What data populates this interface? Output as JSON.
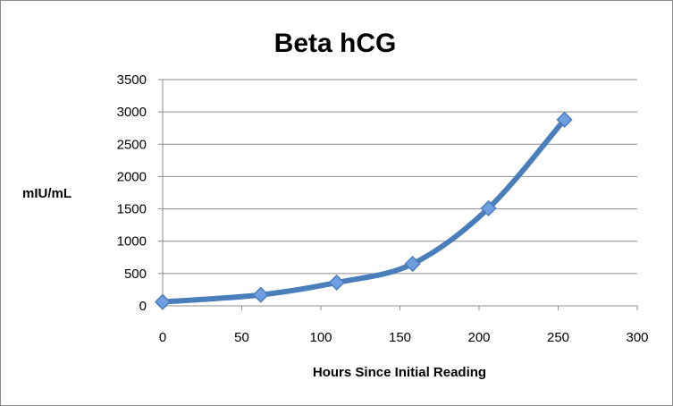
{
  "chart_data": {
    "type": "scatter",
    "title": "Beta hCG",
    "xlabel": "Hours Since Initial Reading",
    "ylabel": "mIU/mL",
    "xlim": [
      0,
      300
    ],
    "ylim": [
      0,
      3500
    ],
    "xticks": [
      0,
      50,
      100,
      150,
      200,
      250,
      300
    ],
    "yticks": [
      0,
      500,
      1000,
      1500,
      2000,
      2500,
      3000,
      3500
    ],
    "grid": "horizontal",
    "legend": "none",
    "smooth_line": true,
    "color": "#4a7ebb",
    "marker_fill": "#6f9fe0",
    "series": [
      {
        "x": [
          0,
          62,
          110,
          158,
          206,
          254
        ],
        "y": [
          60,
          170,
          360,
          650,
          1510,
          2880
        ]
      }
    ]
  }
}
